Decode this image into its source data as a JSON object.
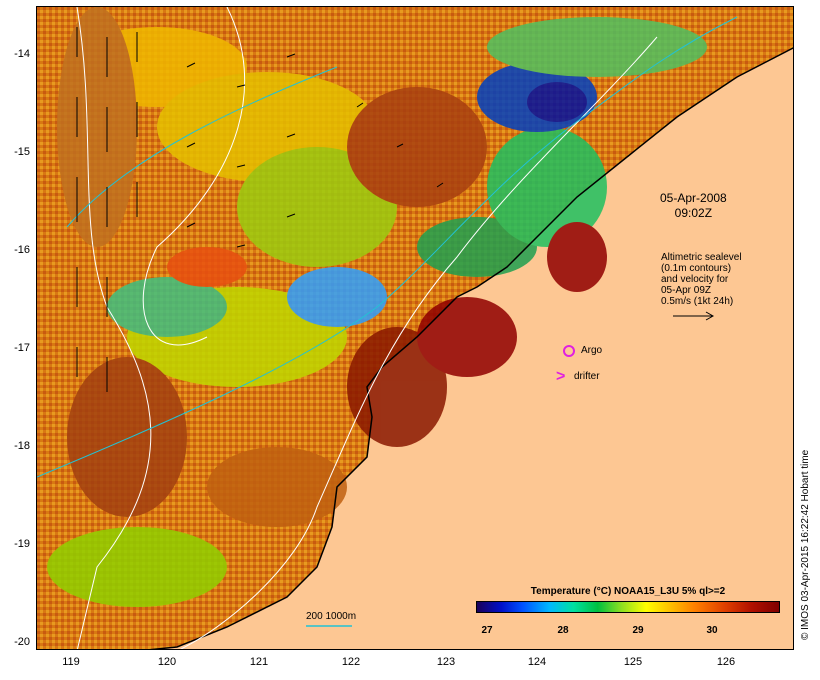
{
  "y_axis": {
    "ticks": [
      "-14",
      "-15",
      "-16",
      "-17",
      "-18",
      "-19",
      "-20"
    ]
  },
  "x_axis": {
    "ticks": [
      "119",
      "120",
      "121",
      "122",
      "123",
      "124",
      "125",
      "126"
    ]
  },
  "timestamp": {
    "date": "05-Apr-2008",
    "time": "09:02Z"
  },
  "altimetry_note": {
    "lines": [
      "Altimetric sealevel",
      "(0.1m contours)",
      "and velocity for",
      "05-Apr 09Z",
      "0.5m/s (1kt 24h)"
    ]
  },
  "markers": {
    "argo_label": "Argo",
    "drifter_label": "drifter",
    "drifter_symbol": ">"
  },
  "depth_legend": {
    "label": "200  1000m"
  },
  "colorbar": {
    "title": "Temperature (°C) NOAA15_L3U 5% ql>=2",
    "ticks": [
      "27",
      "28",
      "29",
      "30"
    ]
  },
  "credit": "© IMOS 03-Apr-2015 16:22:42 Hobart time",
  "colors": {
    "land": "#fdc793",
    "argo": "#e020e0",
    "drifter": "#e020e0",
    "depth_contour": "#22c2d4"
  }
}
